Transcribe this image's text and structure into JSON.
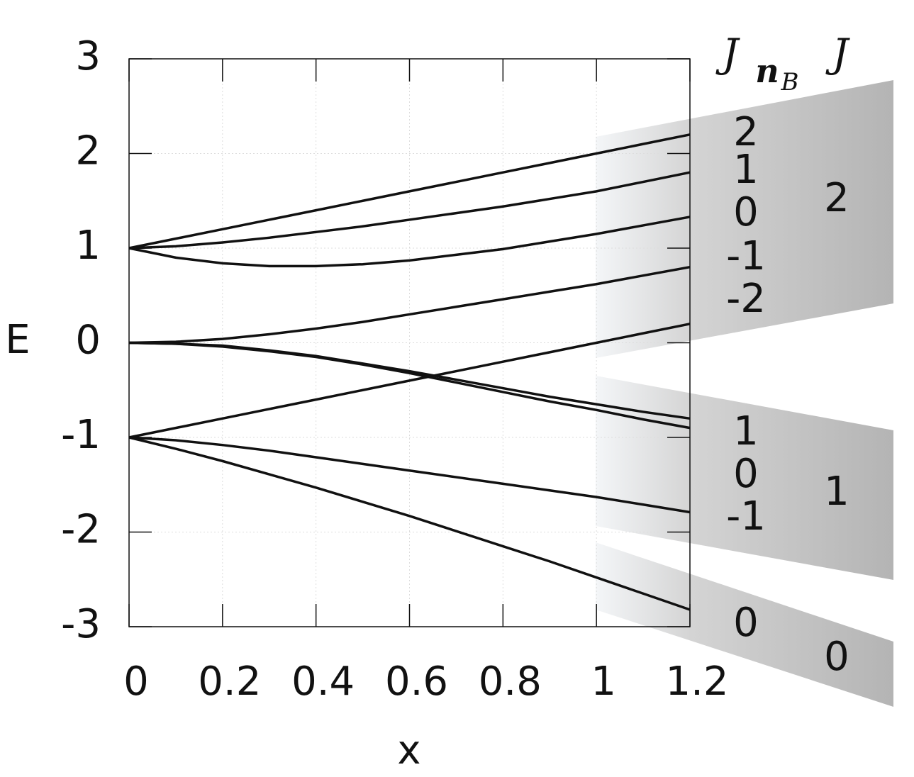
{
  "chart_data": {
    "type": "line",
    "x_label": "x",
    "y_label": "E",
    "x": [
      0,
      0.1,
      0.2,
      0.3,
      0.4,
      0.5,
      0.6,
      0.7,
      0.8,
      0.9,
      1,
      1.1,
      1.2
    ],
    "series": [
      {
        "color": "#111111",
        "values": [
          1,
          1.1,
          1.2,
          1.3,
          1.4,
          1.5,
          1.6,
          1.7,
          1.8,
          1.9,
          2,
          2.1,
          2.2
        ]
      },
      {
        "color": "#111111",
        "values": [
          1,
          1.02,
          1.06,
          1.11,
          1.17,
          1.23,
          1.3,
          1.37,
          1.44,
          1.52,
          1.6,
          1.7,
          1.8
        ]
      },
      {
        "color": "#111111",
        "values": [
          1,
          0.9,
          0.84,
          0.81,
          0.81,
          0.83,
          0.87,
          0.93,
          0.99,
          1.07,
          1.15,
          1.24,
          1.33
        ]
      },
      {
        "color": "#111111",
        "values": [
          0,
          0.01,
          0.04,
          0.09,
          0.15,
          0.22,
          0.3,
          0.38,
          0.46,
          0.54,
          0.62,
          0.71,
          0.8
        ]
      },
      {
        "color": "#111111",
        "values": [
          -1,
          -0.9,
          -0.8,
          -0.7,
          -0.6,
          -0.5,
          -0.4,
          -0.3,
          -0.2,
          -0.1,
          0,
          0.1,
          0.2
        ]
      },
      {
        "color": "#111111",
        "values": [
          0,
          -0.01,
          -0.03,
          -0.08,
          -0.14,
          -0.22,
          -0.3,
          -0.39,
          -0.48,
          -0.57,
          -0.65,
          -0.73,
          -0.8
        ]
      },
      {
        "color": "#111111",
        "values": [
          0,
          -0.01,
          -0.04,
          -0.09,
          -0.15,
          -0.23,
          -0.32,
          -0.42,
          -0.52,
          -0.62,
          -0.71,
          -0.81,
          -0.9
        ]
      },
      {
        "color": "#111111",
        "values": [
          -1,
          -1.03,
          -1.08,
          -1.14,
          -1.21,
          -1.28,
          -1.35,
          -1.42,
          -1.49,
          -1.56,
          -1.63,
          -1.71,
          -1.79
        ]
      },
      {
        "color": "#111111",
        "values": [
          -1,
          -1.12,
          -1.25,
          -1.39,
          -1.53,
          -1.68,
          -1.83,
          -1.99,
          -2.15,
          -2.31,
          -2.48,
          -2.65,
          -2.82
        ]
      }
    ],
    "xlim": [
      0,
      1.2
    ],
    "xticks": [
      0,
      0.2,
      0.4,
      0.6,
      0.8,
      1,
      1.2
    ],
    "ylim": [
      -3,
      3
    ],
    "yticks": [
      -3,
      -2,
      -1,
      0,
      1,
      2,
      3
    ],
    "grid": true
  },
  "state_labels": {
    "header_left": "J",
    "header_sub": "n",
    "header_subsub": "B",
    "header_right": "J",
    "groups": [
      {
        "j": "2",
        "n_b": [
          "2",
          "1",
          "0",
          "-1",
          "-2"
        ]
      },
      {
        "j": "1",
        "n_b": [
          "1",
          "0",
          "-1"
        ]
      },
      {
        "j": "0",
        "n_b": [
          "0"
        ]
      }
    ]
  }
}
